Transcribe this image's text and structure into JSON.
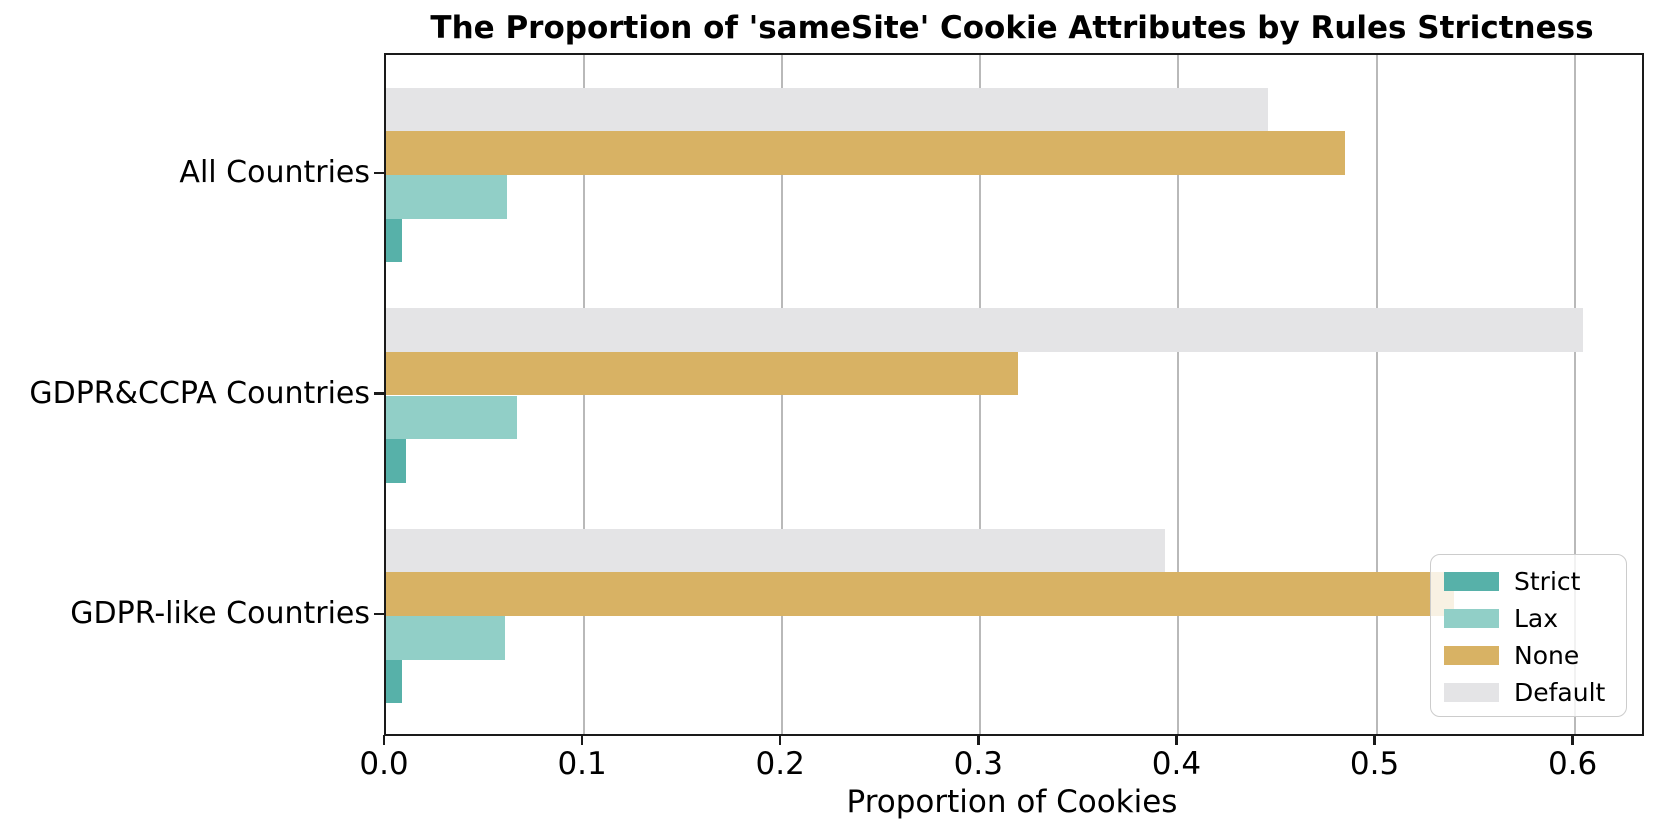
{
  "chart_data": {
    "type": "bar",
    "orientation": "horizontal",
    "title": "The Proportion of 'sameSite' Cookie Attributes by Rules Strictness",
    "xlabel": "Proportion of Cookies",
    "ylabel": "",
    "xlim": [
      0,
      0.634
    ],
    "grid": true,
    "xticks": [
      {
        "value": 0.0,
        "label": "0.0"
      },
      {
        "value": 0.1,
        "label": "0.1"
      },
      {
        "value": 0.2,
        "label": "0.2"
      },
      {
        "value": 0.3,
        "label": "0.3"
      },
      {
        "value": 0.4,
        "label": "0.4"
      },
      {
        "value": 0.5,
        "label": "0.5"
      },
      {
        "value": 0.6,
        "label": "0.6"
      }
    ],
    "categories": [
      "All Countries",
      "GDPR&CCPA Countries",
      "GDPR-like Countries"
    ],
    "series": [
      {
        "name": "Strict",
        "color": "#57b1a9",
        "values": [
          0.008,
          0.01,
          0.008
        ]
      },
      {
        "name": "Lax",
        "color": "#91cfc7",
        "values": [
          0.061,
          0.066,
          0.06
        ]
      },
      {
        "name": "None",
        "color": "#d8b264",
        "values": [
          0.484,
          0.319,
          0.539
        ]
      },
      {
        "name": "Default",
        "color": "#e4e4e6",
        "values": [
          0.445,
          0.604,
          0.393
        ]
      }
    ],
    "legend": {
      "position": "lower right",
      "entries": [
        "Strict",
        "Lax",
        "None",
        "Default"
      ]
    },
    "colors": {
      "grid": "#b9b9b9",
      "spine": "#1a1a1a",
      "text": "#000000",
      "background": "#ffffff"
    }
  }
}
